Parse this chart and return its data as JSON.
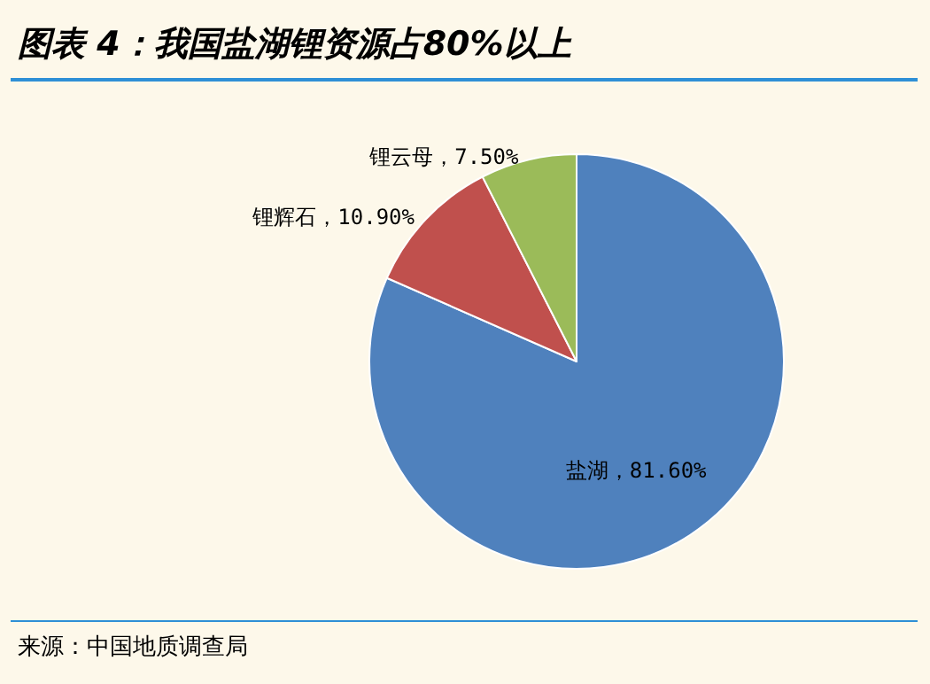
{
  "chart_data": {
    "type": "pie",
    "title": "图表 4：我国盐湖锂资源占80%以上",
    "categories": [
      "盐湖",
      "锂辉石",
      "锂云母"
    ],
    "values": [
      81.6,
      10.9,
      7.5
    ],
    "colors": [
      "#4f81bd",
      "#c0504d",
      "#9bbb59"
    ],
    "value_labels": [
      "81.60%",
      "10.90%",
      "7.50%"
    ],
    "legend": false,
    "annotations": [
      "来源：中国地质调查局"
    ]
  }
}
